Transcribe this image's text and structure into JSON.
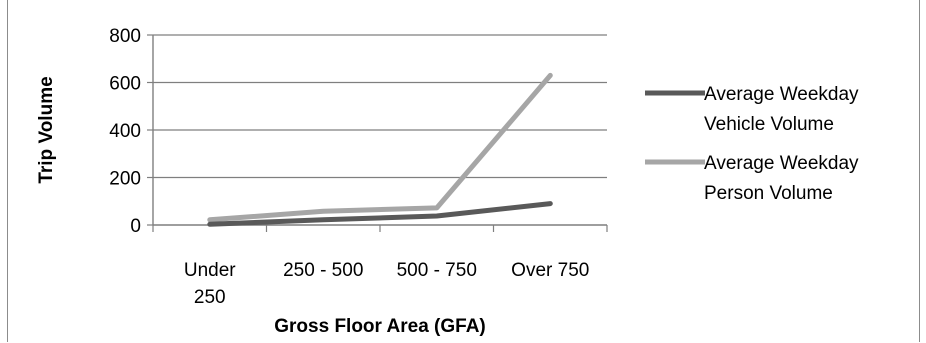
{
  "chart_data": {
    "type": "line",
    "title": "",
    "xlabel": "Gross Floor Area (GFA)",
    "ylabel": "Trip Volume",
    "categories": [
      "Under 250",
      "250 - 500",
      "500 - 750",
      "Over 750"
    ],
    "category_lines": [
      [
        "Under",
        "250"
      ],
      [
        "250 - 500"
      ],
      [
        "500 - 750"
      ],
      [
        "Over 750"
      ]
    ],
    "ylim": [
      0,
      800
    ],
    "yticks": [
      0,
      200,
      400,
      600,
      800
    ],
    "grid": true,
    "legend_position": "right",
    "series": [
      {
        "name": "Average Weekday Vehicle Volume",
        "name_lines": [
          "Average Weekday",
          "Vehicle Volume"
        ],
        "color": "#595959",
        "values": [
          3,
          22,
          38,
          90
        ]
      },
      {
        "name": "Average Weekday Person Volume",
        "name_lines": [
          "Average Weekday",
          "Person Volume"
        ],
        "color": "#a6a6a6",
        "values": [
          22,
          58,
          72,
          630
        ]
      }
    ]
  }
}
